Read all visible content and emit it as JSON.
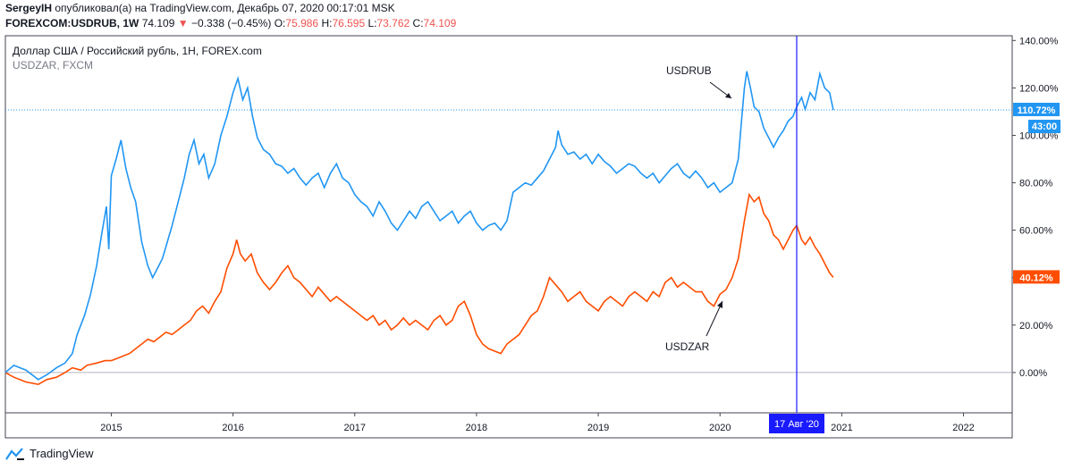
{
  "header": {
    "author": "SergeyIH",
    "published_text": "опубликовал(а) на TradingView.com, Декабрь 07, 2020 00:17:01 MSK",
    "symbol": "FOREXCOM:USDRUB, 1W",
    "last": "74.109",
    "change_arrow": "▼",
    "change": "−0.338 (−0.45%)",
    "o_label": "O:",
    "o": "75.986",
    "h_label": "H:",
    "h": "76.595",
    "l_label": "L:",
    "l": "73.762",
    "c_label": "C:",
    "c": "74.109"
  },
  "legend": {
    "main": "Доллар США / Российский рубль, 1H, FOREX.com",
    "compare": "USDZAR, FXCM"
  },
  "footer": {
    "brand": "TradingView"
  },
  "colors": {
    "usdrub": "#2196f3",
    "usdzar": "#ff4d00",
    "crosshair": "#1a1aff",
    "zero": "#b2b5be"
  },
  "chart_data": {
    "type": "line",
    "y_unit": "%",
    "ylim": [
      -17,
      142
    ],
    "y_ticks": [
      "140.00%",
      "120.00%",
      "100.00%",
      "80.00%",
      "60.00%",
      "40.00%",
      "20.00%",
      "0.00%"
    ],
    "y_tick_values": [
      140,
      120,
      100,
      80,
      60,
      40,
      20,
      0
    ],
    "x_ticks": [
      "2015",
      "2016",
      "2017",
      "2018",
      "2019",
      "2020",
      "2021",
      "2022"
    ],
    "x_tick_years": [
      2015,
      2016,
      2017,
      2018,
      2019,
      2020,
      2021,
      2022
    ],
    "xlim_years": [
      2014.13,
      2022.4
    ],
    "crosshair_label": "17 Авг '20",
    "crosshair_year": 2020.63,
    "series": [
      {
        "name": "USDRUB",
        "last_label": "110.72%",
        "countdown": "43:00",
        "last_value": 110.72,
        "points": [
          [
            2014.13,
            0
          ],
          [
            2014.2,
            3
          ],
          [
            2014.3,
            1
          ],
          [
            2014.4,
            -3
          ],
          [
            2014.47,
            -1
          ],
          [
            2014.55,
            2
          ],
          [
            2014.62,
            4
          ],
          [
            2014.68,
            8
          ],
          [
            2014.72,
            16
          ],
          [
            2014.78,
            24
          ],
          [
            2014.83,
            33
          ],
          [
            2014.88,
            45
          ],
          [
            2014.92,
            58
          ],
          [
            2014.96,
            70
          ],
          [
            2014.98,
            52
          ],
          [
            2015.0,
            83
          ],
          [
            2015.04,
            90
          ],
          [
            2015.08,
            98
          ],
          [
            2015.12,
            86
          ],
          [
            2015.16,
            78
          ],
          [
            2015.2,
            72
          ],
          [
            2015.25,
            55
          ],
          [
            2015.3,
            45
          ],
          [
            2015.34,
            40
          ],
          [
            2015.38,
            44
          ],
          [
            2015.42,
            48
          ],
          [
            2015.46,
            55
          ],
          [
            2015.5,
            62
          ],
          [
            2015.55,
            72
          ],
          [
            2015.6,
            82
          ],
          [
            2015.64,
            92
          ],
          [
            2015.68,
            98
          ],
          [
            2015.72,
            88
          ],
          [
            2015.76,
            92
          ],
          [
            2015.8,
            82
          ],
          [
            2015.85,
            88
          ],
          [
            2015.9,
            100
          ],
          [
            2015.95,
            108
          ],
          [
            2016.0,
            118
          ],
          [
            2016.04,
            124
          ],
          [
            2016.08,
            115
          ],
          [
            2016.12,
            120
          ],
          [
            2016.16,
            108
          ],
          [
            2016.2,
            99
          ],
          [
            2016.25,
            94
          ],
          [
            2016.3,
            92
          ],
          [
            2016.35,
            88
          ],
          [
            2016.4,
            87
          ],
          [
            2016.45,
            84
          ],
          [
            2016.5,
            86
          ],
          [
            2016.55,
            82
          ],
          [
            2016.6,
            79
          ],
          [
            2016.65,
            82
          ],
          [
            2016.7,
            84
          ],
          [
            2016.75,
            78
          ],
          [
            2016.8,
            84
          ],
          [
            2016.85,
            88
          ],
          [
            2016.9,
            82
          ],
          [
            2016.95,
            80
          ],
          [
            2017.0,
            75
          ],
          [
            2017.05,
            72
          ],
          [
            2017.1,
            70
          ],
          [
            2017.15,
            66
          ],
          [
            2017.2,
            72
          ],
          [
            2017.25,
            68
          ],
          [
            2017.3,
            63
          ],
          [
            2017.35,
            60
          ],
          [
            2017.4,
            64
          ],
          [
            2017.45,
            68
          ],
          [
            2017.5,
            65
          ],
          [
            2017.55,
            70
          ],
          [
            2017.6,
            72
          ],
          [
            2017.65,
            68
          ],
          [
            2017.7,
            64
          ],
          [
            2017.75,
            66
          ],
          [
            2017.8,
            68
          ],
          [
            2017.85,
            63
          ],
          [
            2017.9,
            66
          ],
          [
            2017.95,
            68
          ],
          [
            2018.0,
            63
          ],
          [
            2018.05,
            60
          ],
          [
            2018.1,
            62
          ],
          [
            2018.15,
            63
          ],
          [
            2018.2,
            60
          ],
          [
            2018.25,
            64
          ],
          [
            2018.3,
            76
          ],
          [
            2018.35,
            78
          ],
          [
            2018.4,
            80
          ],
          [
            2018.45,
            79
          ],
          [
            2018.5,
            82
          ],
          [
            2018.55,
            85
          ],
          [
            2018.6,
            90
          ],
          [
            2018.65,
            95
          ],
          [
            2018.67,
            102
          ],
          [
            2018.7,
            96
          ],
          [
            2018.75,
            92
          ],
          [
            2018.8,
            93
          ],
          [
            2018.85,
            90
          ],
          [
            2018.9,
            92
          ],
          [
            2018.95,
            88
          ],
          [
            2019.0,
            92
          ],
          [
            2019.05,
            89
          ],
          [
            2019.1,
            87
          ],
          [
            2019.15,
            84
          ],
          [
            2019.2,
            86
          ],
          [
            2019.25,
            88
          ],
          [
            2019.3,
            87
          ],
          [
            2019.35,
            84
          ],
          [
            2019.4,
            82
          ],
          [
            2019.45,
            84
          ],
          [
            2019.5,
            80
          ],
          [
            2019.55,
            83
          ],
          [
            2019.6,
            86
          ],
          [
            2019.65,
            88
          ],
          [
            2019.7,
            84
          ],
          [
            2019.75,
            82
          ],
          [
            2019.8,
            85
          ],
          [
            2019.85,
            82
          ],
          [
            2019.9,
            78
          ],
          [
            2019.95,
            80
          ],
          [
            2020.0,
            76
          ],
          [
            2020.05,
            78
          ],
          [
            2020.1,
            80
          ],
          [
            2020.15,
            90
          ],
          [
            2020.18,
            108
          ],
          [
            2020.2,
            120
          ],
          [
            2020.22,
            127
          ],
          [
            2020.25,
            120
          ],
          [
            2020.28,
            112
          ],
          [
            2020.32,
            110
          ],
          [
            2020.36,
            103
          ],
          [
            2020.4,
            99
          ],
          [
            2020.44,
            95
          ],
          [
            2020.48,
            99
          ],
          [
            2020.52,
            102
          ],
          [
            2020.56,
            106
          ],
          [
            2020.6,
            108
          ],
          [
            2020.63,
            112
          ],
          [
            2020.67,
            116
          ],
          [
            2020.7,
            111
          ],
          [
            2020.74,
            118
          ],
          [
            2020.78,
            115
          ],
          [
            2020.82,
            126
          ],
          [
            2020.86,
            120
          ],
          [
            2020.9,
            118
          ],
          [
            2020.93,
            110.72
          ]
        ]
      },
      {
        "name": "USDZAR",
        "last_label": "40.12%",
        "last_value": 40.12,
        "points": [
          [
            2014.13,
            0
          ],
          [
            2014.2,
            -2
          ],
          [
            2014.3,
            -4
          ],
          [
            2014.4,
            -5
          ],
          [
            2014.47,
            -3
          ],
          [
            2014.55,
            -2
          ],
          [
            2014.62,
            0
          ],
          [
            2014.68,
            2
          ],
          [
            2014.75,
            1
          ],
          [
            2014.8,
            3
          ],
          [
            2014.88,
            4
          ],
          [
            2014.95,
            5
          ],
          [
            2015.0,
            5
          ],
          [
            2015.05,
            6
          ],
          [
            2015.1,
            7
          ],
          [
            2015.15,
            8
          ],
          [
            2015.2,
            10
          ],
          [
            2015.25,
            12
          ],
          [
            2015.3,
            14
          ],
          [
            2015.35,
            13
          ],
          [
            2015.4,
            15
          ],
          [
            2015.45,
            17
          ],
          [
            2015.5,
            16
          ],
          [
            2015.55,
            18
          ],
          [
            2015.6,
            20
          ],
          [
            2015.65,
            22
          ],
          [
            2015.7,
            26
          ],
          [
            2015.75,
            28
          ],
          [
            2015.8,
            25
          ],
          [
            2015.85,
            30
          ],
          [
            2015.9,
            34
          ],
          [
            2015.95,
            44
          ],
          [
            2016.0,
            50
          ],
          [
            2016.03,
            56
          ],
          [
            2016.06,
            50
          ],
          [
            2016.1,
            47
          ],
          [
            2016.15,
            50
          ],
          [
            2016.2,
            42
          ],
          [
            2016.25,
            38
          ],
          [
            2016.3,
            35
          ],
          [
            2016.35,
            38
          ],
          [
            2016.4,
            42
          ],
          [
            2016.45,
            45
          ],
          [
            2016.5,
            40
          ],
          [
            2016.55,
            38
          ],
          [
            2016.6,
            35
          ],
          [
            2016.65,
            32
          ],
          [
            2016.7,
            36
          ],
          [
            2016.75,
            33
          ],
          [
            2016.8,
            30
          ],
          [
            2016.85,
            32
          ],
          [
            2016.9,
            30
          ],
          [
            2016.95,
            28
          ],
          [
            2017.0,
            26
          ],
          [
            2017.05,
            24
          ],
          [
            2017.1,
            22
          ],
          [
            2017.15,
            24
          ],
          [
            2017.2,
            20
          ],
          [
            2017.25,
            22
          ],
          [
            2017.3,
            18
          ],
          [
            2017.35,
            20
          ],
          [
            2017.4,
            23
          ],
          [
            2017.45,
            20
          ],
          [
            2017.5,
            22
          ],
          [
            2017.55,
            20
          ],
          [
            2017.6,
            18
          ],
          [
            2017.65,
            22
          ],
          [
            2017.7,
            24
          ],
          [
            2017.75,
            20
          ],
          [
            2017.8,
            22
          ],
          [
            2017.85,
            28
          ],
          [
            2017.9,
            30
          ],
          [
            2017.95,
            24
          ],
          [
            2018.0,
            16
          ],
          [
            2018.05,
            12
          ],
          [
            2018.1,
            10
          ],
          [
            2018.15,
            9
          ],
          [
            2018.2,
            8
          ],
          [
            2018.25,
            12
          ],
          [
            2018.3,
            14
          ],
          [
            2018.35,
            16
          ],
          [
            2018.4,
            20
          ],
          [
            2018.45,
            24
          ],
          [
            2018.5,
            26
          ],
          [
            2018.55,
            32
          ],
          [
            2018.6,
            40
          ],
          [
            2018.65,
            37
          ],
          [
            2018.7,
            34
          ],
          [
            2018.75,
            30
          ],
          [
            2018.8,
            32
          ],
          [
            2018.85,
            34
          ],
          [
            2018.9,
            30
          ],
          [
            2018.95,
            28
          ],
          [
            2019.0,
            26
          ],
          [
            2019.05,
            30
          ],
          [
            2019.1,
            32
          ],
          [
            2019.15,
            30
          ],
          [
            2019.2,
            28
          ],
          [
            2019.25,
            32
          ],
          [
            2019.3,
            34
          ],
          [
            2019.35,
            32
          ],
          [
            2019.4,
            30
          ],
          [
            2019.45,
            34
          ],
          [
            2019.5,
            32
          ],
          [
            2019.55,
            38
          ],
          [
            2019.6,
            40
          ],
          [
            2019.65,
            36
          ],
          [
            2019.7,
            38
          ],
          [
            2019.75,
            36
          ],
          [
            2019.8,
            34
          ],
          [
            2019.85,
            34
          ],
          [
            2019.9,
            30
          ],
          [
            2019.95,
            28
          ],
          [
            2020.0,
            33
          ],
          [
            2020.05,
            35
          ],
          [
            2020.1,
            40
          ],
          [
            2020.15,
            48
          ],
          [
            2020.2,
            64
          ],
          [
            2020.24,
            75
          ],
          [
            2020.28,
            72
          ],
          [
            2020.32,
            74
          ],
          [
            2020.36,
            67
          ],
          [
            2020.4,
            64
          ],
          [
            2020.44,
            58
          ],
          [
            2020.48,
            56
          ],
          [
            2020.52,
            52
          ],
          [
            2020.56,
            56
          ],
          [
            2020.6,
            60
          ],
          [
            2020.63,
            62
          ],
          [
            2020.67,
            56
          ],
          [
            2020.7,
            54
          ],
          [
            2020.74,
            57
          ],
          [
            2020.78,
            53
          ],
          [
            2020.82,
            50
          ],
          [
            2020.86,
            46
          ],
          [
            2020.9,
            42
          ],
          [
            2020.93,
            40.12
          ]
        ]
      }
    ],
    "annotations": [
      {
        "text": "USDRUB",
        "target": "USDRUB"
      },
      {
        "text": "USDZAR",
        "target": "USDZAR"
      }
    ]
  }
}
